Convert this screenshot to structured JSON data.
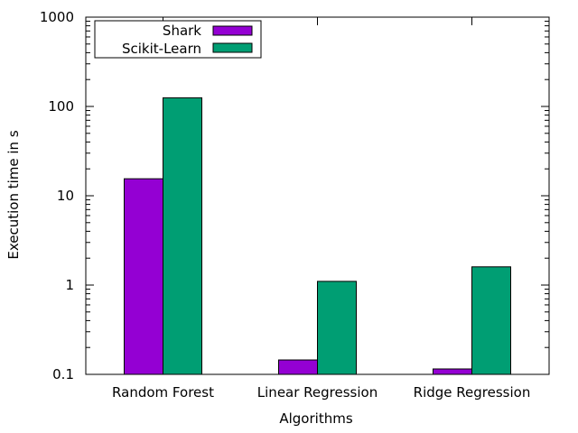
{
  "chart_data": {
    "type": "bar",
    "title": "",
    "xlabel": "Algorithms",
    "ylabel": "Execution time in s",
    "y_scale": "log",
    "ylim": [
      0.1,
      1000
    ],
    "y_ticks": [
      0.1,
      1,
      10,
      100,
      1000
    ],
    "y_tick_labels": [
      "0.1",
      "1",
      "10",
      "100",
      "1000"
    ],
    "categories": [
      "Random Forest",
      "Linear Regression",
      "Ridge Regression"
    ],
    "series": [
      {
        "name": "Shark",
        "color": "#9400d3",
        "values": [
          15.5,
          0.145,
          0.115
        ]
      },
      {
        "name": "Scikit-Learn",
        "color": "#009e73",
        "values": [
          125,
          1.1,
          1.6
        ]
      }
    ],
    "legend_position": "top-left",
    "grid": false
  }
}
